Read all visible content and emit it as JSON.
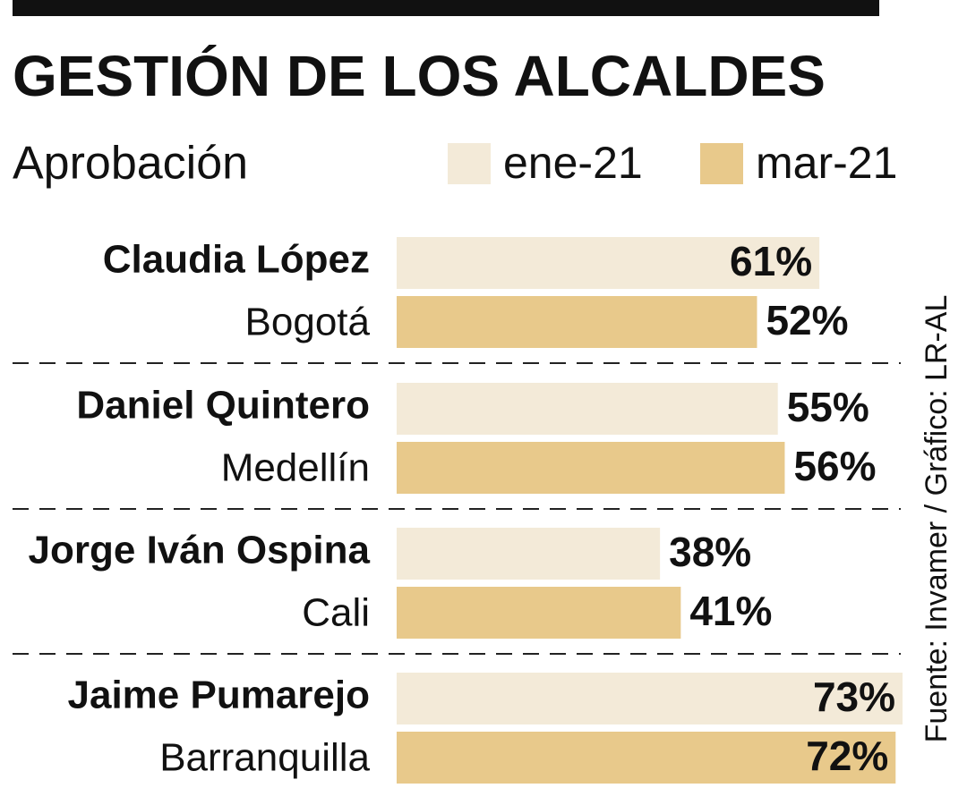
{
  "chart_data": {
    "type": "bar",
    "orientation": "horizontal",
    "title": "GESTIÓN DE LOS ALCALDES",
    "subtitle": "Aprobación",
    "categories": [
      "Claudia López",
      "Daniel Quintero",
      "Jorge Iván Ospina",
      "Jaime Pumarejo"
    ],
    "subcategories": [
      "Bogotá",
      "Medellín",
      "Cali",
      "Barranquilla"
    ],
    "series": [
      {
        "name": "ene-21",
        "color": "#f3ead8",
        "values": [
          61,
          55,
          38,
          73
        ],
        "value_labels": [
          "61%",
          "55%",
          "38%",
          "73%"
        ]
      },
      {
        "name": "mar-21",
        "color": "#e8c98b",
        "values": [
          52,
          56,
          41,
          72
        ],
        "value_labels": [
          "52%",
          "56%",
          "41%",
          "72%"
        ]
      }
    ],
    "source": "Fuente: Invamer / Gráfico: LR-AL"
  }
}
